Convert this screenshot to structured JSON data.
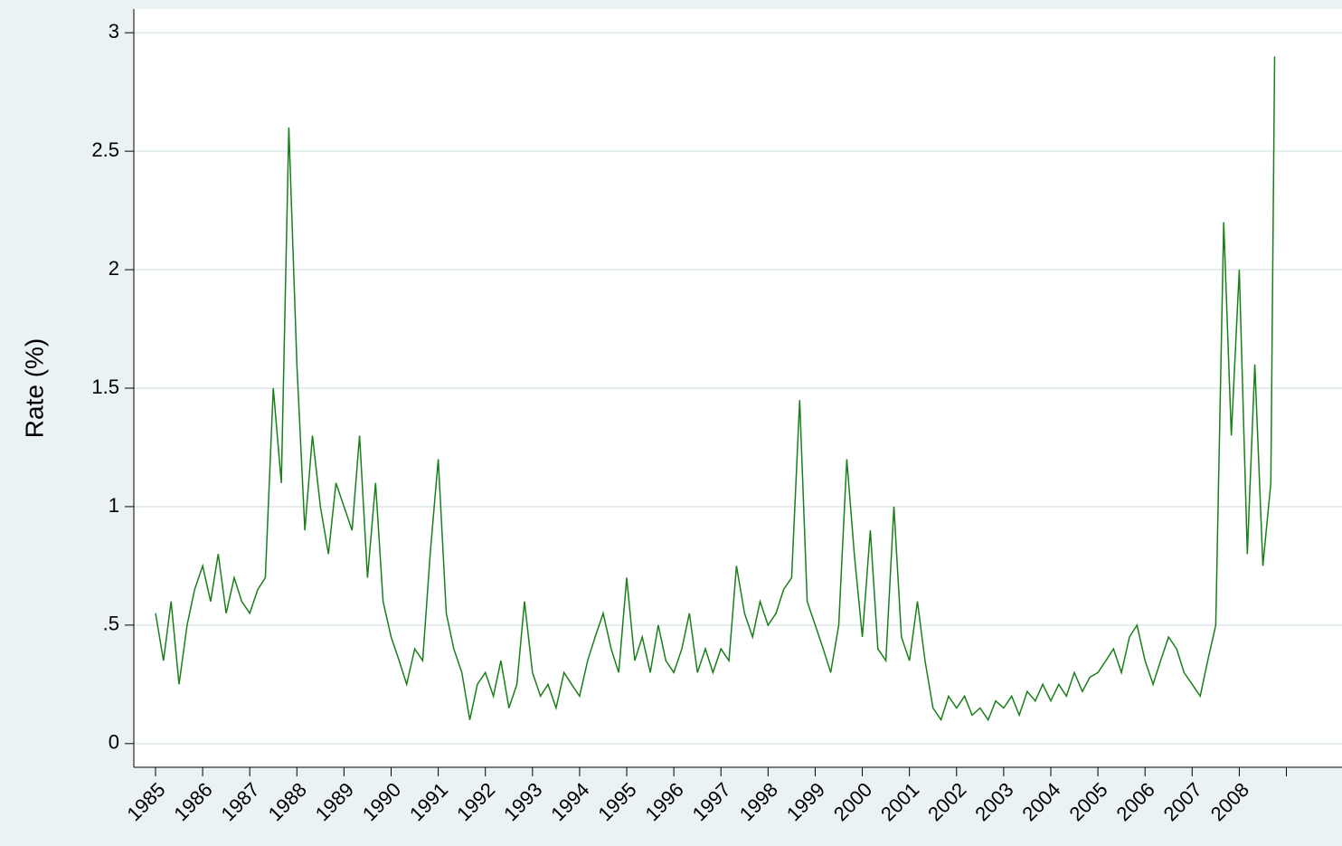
{
  "chart_data": {
    "type": "line",
    "y_label": "Rate (%)",
    "x": [
      1985.0,
      1985.17,
      1985.33,
      1985.5,
      1985.67,
      1985.83,
      1986.0,
      1986.17,
      1986.33,
      1986.5,
      1986.67,
      1986.83,
      1987.0,
      1987.17,
      1987.33,
      1987.5,
      1987.67,
      1987.83,
      1988.0,
      1988.17,
      1988.33,
      1988.5,
      1988.67,
      1988.83,
      1989.0,
      1989.17,
      1989.33,
      1989.5,
      1989.67,
      1989.83,
      1990.0,
      1990.17,
      1990.33,
      1990.5,
      1990.67,
      1990.83,
      1991.0,
      1991.17,
      1991.33,
      1991.5,
      1991.67,
      1991.83,
      1992.0,
      1992.17,
      1992.33,
      1992.5,
      1992.67,
      1992.83,
      1993.0,
      1993.17,
      1993.33,
      1993.5,
      1993.67,
      1993.83,
      1994.0,
      1994.17,
      1994.33,
      1994.5,
      1994.67,
      1994.83,
      1995.0,
      1995.17,
      1995.33,
      1995.5,
      1995.67,
      1995.83,
      1996.0,
      1996.17,
      1996.33,
      1996.5,
      1996.67,
      1996.83,
      1997.0,
      1997.17,
      1997.33,
      1997.5,
      1997.67,
      1997.83,
      1998.0,
      1998.17,
      1998.33,
      1998.5,
      1998.67,
      1998.83,
      1999.0,
      1999.17,
      1999.33,
      1999.5,
      1999.67,
      1999.83,
      2000.0,
      2000.17,
      2000.33,
      2000.5,
      2000.67,
      2000.83,
      2001.0,
      2001.17,
      2001.33,
      2001.5,
      2001.67,
      2001.83,
      2002.0,
      2002.17,
      2002.33,
      2002.5,
      2002.67,
      2002.83,
      2003.0,
      2003.17,
      2003.33,
      2003.5,
      2003.67,
      2003.83,
      2004.0,
      2004.17,
      2004.33,
      2004.5,
      2004.67,
      2004.83,
      2005.0,
      2005.17,
      2005.33,
      2005.5,
      2005.67,
      2005.83,
      2006.0,
      2006.17,
      2006.33,
      2006.5,
      2006.67,
      2006.83,
      2007.0,
      2007.17,
      2007.33,
      2007.5,
      2007.67,
      2007.83,
      2008.0,
      2008.17,
      2008.33,
      2008.5,
      2008.67,
      2008.75
    ],
    "series": [
      {
        "color": "#1a7f1a",
        "values": [
          0.55,
          0.35,
          0.6,
          0.25,
          0.5,
          0.65,
          0.75,
          0.6,
          0.8,
          0.55,
          0.7,
          0.6,
          0.55,
          0.65,
          0.7,
          1.5,
          1.1,
          2.6,
          1.6,
          0.9,
          1.3,
          1.0,
          0.8,
          1.1,
          1.0,
          0.9,
          1.3,
          0.7,
          1.1,
          0.6,
          0.45,
          0.35,
          0.25,
          0.4,
          0.35,
          0.8,
          1.2,
          0.55,
          0.4,
          0.3,
          0.1,
          0.25,
          0.3,
          0.2,
          0.35,
          0.15,
          0.25,
          0.6,
          0.3,
          0.2,
          0.25,
          0.15,
          0.3,
          0.25,
          0.2,
          0.35,
          0.45,
          0.55,
          0.4,
          0.3,
          0.7,
          0.35,
          0.45,
          0.3,
          0.5,
          0.35,
          0.3,
          0.4,
          0.55,
          0.3,
          0.4,
          0.3,
          0.4,
          0.35,
          0.75,
          0.55,
          0.45,
          0.6,
          0.5,
          0.55,
          0.65,
          0.7,
          1.45,
          0.6,
          0.5,
          0.4,
          0.3,
          0.5,
          1.2,
          0.8,
          0.45,
          0.9,
          0.4,
          0.35,
          1.0,
          0.45,
          0.35,
          0.6,
          0.35,
          0.15,
          0.1,
          0.2,
          0.15,
          0.2,
          0.12,
          0.15,
          0.1,
          0.18,
          0.15,
          0.2,
          0.12,
          0.22,
          0.18,
          0.25,
          0.18,
          0.25,
          0.2,
          0.3,
          0.22,
          0.28,
          0.3,
          0.35,
          0.4,
          0.3,
          0.45,
          0.5,
          0.35,
          0.25,
          0.35,
          0.45,
          0.4,
          0.3,
          0.25,
          0.2,
          0.35,
          0.5,
          2.2,
          1.3,
          2.0,
          0.8,
          1.6,
          0.75,
          1.1,
          2.9
        ]
      }
    ],
    "xlim": [
      1984.54,
      2010.18
    ],
    "xticks": [
      1985,
      1986,
      1987,
      1988,
      1989,
      1990,
      1991,
      1992,
      1993,
      1994,
      1995,
      1996,
      1997,
      1998,
      1999,
      2000,
      2001,
      2002,
      2003,
      2004,
      2005,
      2006,
      2007,
      2008,
      {
        "value": 2009,
        "label": null
      }
    ],
    "ylim": [
      -0.1,
      3.1
    ],
    "yticks": [
      0,
      {
        "value": 0.5,
        "label": ".5"
      },
      1,
      1.5,
      2,
      2.5,
      3
    ],
    "grid": true
  }
}
